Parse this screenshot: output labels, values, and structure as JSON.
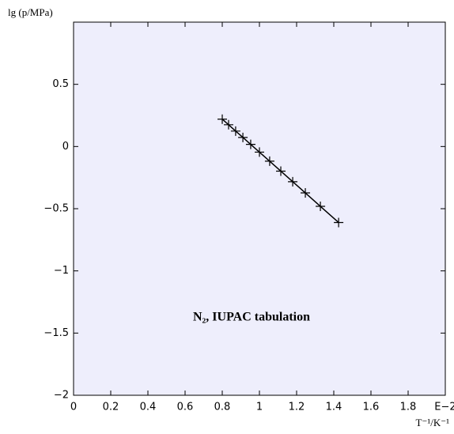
{
  "chart_data": {
    "type": "line",
    "ylabel": "lg (p/MPa)",
    "xlabel": "T⁻¹/K⁻¹",
    "annotation": "N₂, IUPAC tabulation",
    "x": [
      0.8,
      0.834,
      0.872,
      0.911,
      0.953,
      1.0,
      1.055,
      1.115,
      1.179,
      1.247,
      1.328,
      1.426
    ],
    "series": [
      {
        "color": "#000000",
        "values": [
          0.22,
          0.175,
          0.124,
          0.073,
          0.017,
          -0.045,
          -0.118,
          -0.198,
          -0.283,
          -0.373,
          -0.481,
          -0.611
        ]
      }
    ],
    "xlim": [
      0,
      2
    ],
    "ylim": [
      -2,
      1
    ],
    "xticks": [
      0,
      0.2,
      0.4,
      0.6,
      0.8,
      1,
      1.2,
      1.4,
      1.6,
      1.8,
      {
        "value": 2,
        "label": "E−2"
      }
    ],
    "yticks": [
      {
        "value": -2,
        "label": "−2"
      },
      {
        "value": -1.5,
        "label": "−1.5"
      },
      {
        "value": -1,
        "label": "−1"
      },
      {
        "value": -0.5,
        "label": "−0.5"
      },
      0,
      0.5
    ],
    "background": "#eeeefc"
  }
}
